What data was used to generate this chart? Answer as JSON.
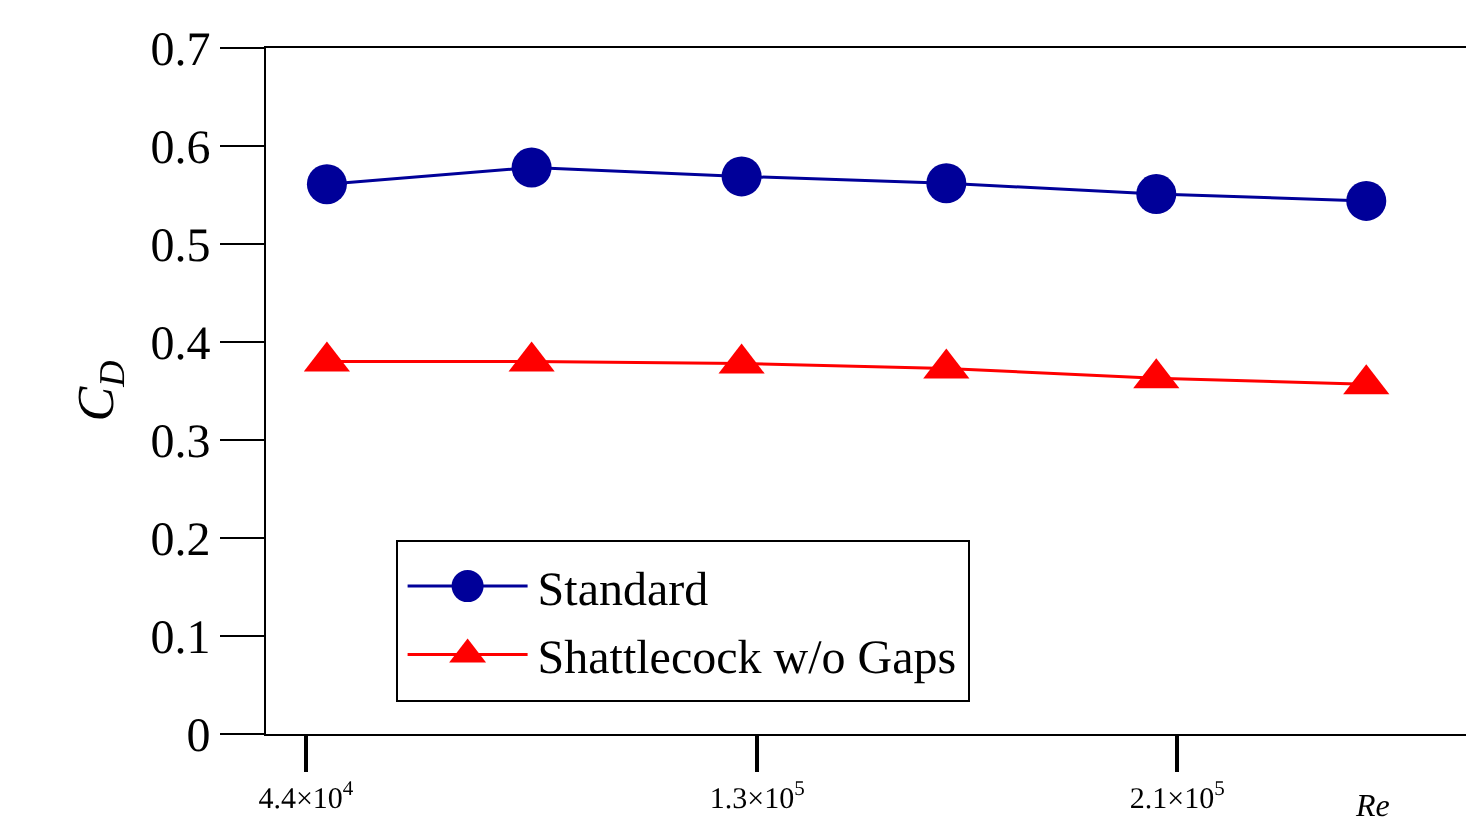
{
  "chart_data": {
    "type": "line",
    "x": [
      48000,
      87000,
      127000,
      166000,
      206000,
      246000
    ],
    "series": [
      {
        "name": "Standard",
        "color": "#000099",
        "marker": "circle",
        "values": [
          0.561,
          0.578,
          0.569,
          0.562,
          0.551,
          0.544
        ]
      },
      {
        "name": "Shattlecock w/o Gaps",
        "color": "#ff0000",
        "marker": "triangle",
        "values": [
          0.38,
          0.38,
          0.378,
          0.373,
          0.363,
          0.357
        ]
      }
    ],
    "xlabel": "Re",
    "ylabel": "C$_{D}$",
    "xlim": [
      36400,
      265000
    ],
    "xticks": [
      {
        "value": 44000,
        "label": "4.4×10$^{4}$"
      },
      {
        "value": 130000,
        "label": "1.3×10$^{5}$"
      },
      {
        "value": 210000,
        "label": "2.1×10$^{5}$"
      }
    ],
    "ylim": [
      0,
      0.7
    ],
    "yticks": [
      0,
      0.1,
      0.2,
      0.3,
      0.4,
      0.5,
      0.6,
      0.7
    ],
    "legend": "bottom",
    "line_style": "solid"
  }
}
